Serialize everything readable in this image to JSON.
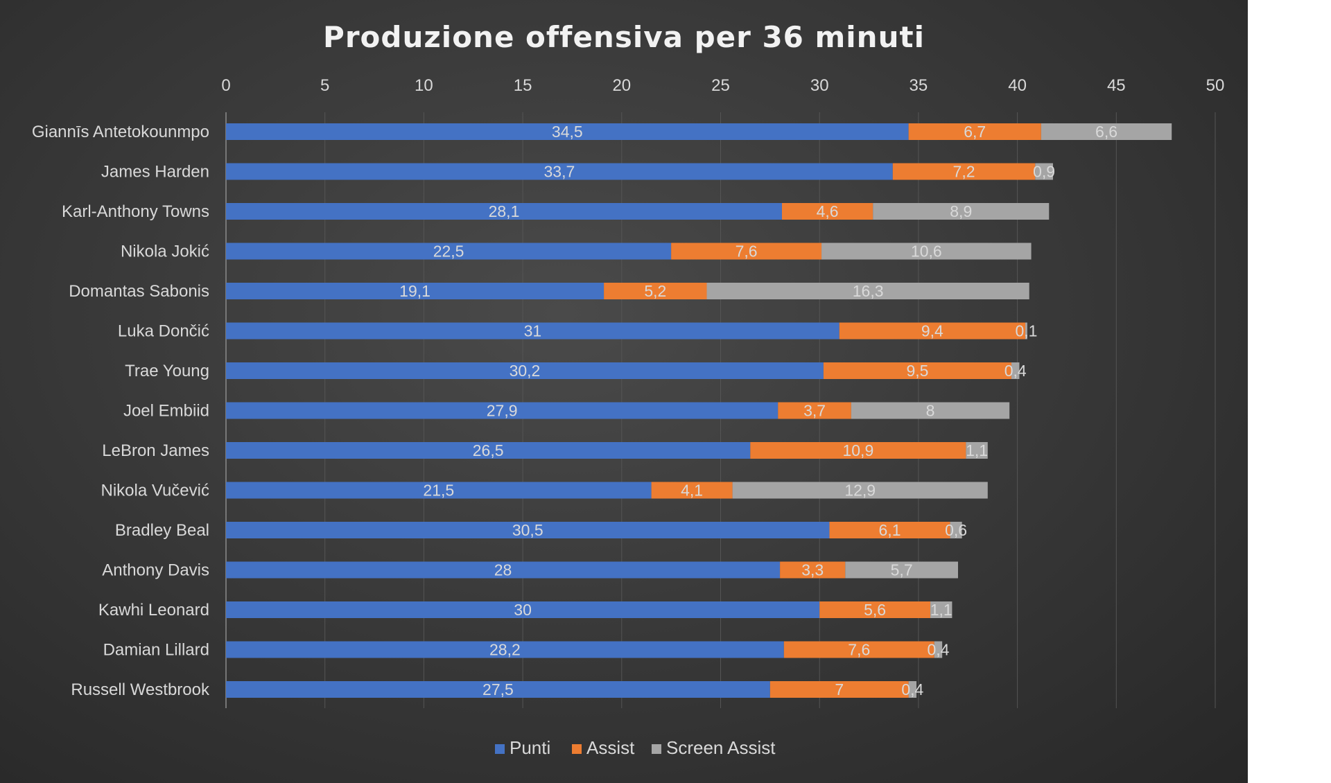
{
  "chart_data": {
    "type": "bar",
    "orientation": "horizontal",
    "stacked": true,
    "title": "Produzione  offensiva  per  36  minuti",
    "xlim": [
      0,
      50
    ],
    "xticks": [
      0,
      5,
      10,
      15,
      20,
      25,
      30,
      35,
      40,
      45,
      50
    ],
    "x_axis_position": "top",
    "grid": true,
    "legend_position": "bottom",
    "categories": [
      "Giannīs Antetokounmpo",
      "James Harden",
      "Karl-Anthony Towns",
      "Nikola Jokić",
      "Domantas Sabonis",
      "Luka Dončić",
      "Trae Young",
      "Joel Embiid",
      "LeBron James",
      "Nikola Vučević",
      "Bradley  Beal",
      "Anthony Davis",
      "Kawhi Leonard",
      "Damian Lillard",
      "Russell Westbrook"
    ],
    "series": [
      {
        "name": "Punti",
        "color": "#4472c4",
        "values": [
          34.5,
          33.7,
          28.1,
          22.5,
          19.1,
          31,
          30.2,
          27.9,
          26.5,
          21.5,
          30.5,
          28,
          30,
          28.2,
          27.5
        ],
        "labels": [
          "34,5",
          "33,7",
          "28,1",
          "22,5",
          "19,1",
          "31",
          "30,2",
          "27,9",
          "26,5",
          "21,5",
          "30,5",
          "28",
          "30",
          "28,2",
          "27,5"
        ]
      },
      {
        "name": "Assist",
        "color": "#ed7d31",
        "values": [
          6.7,
          7.2,
          4.6,
          7.6,
          5.2,
          9.4,
          9.5,
          3.7,
          10.9,
          4.1,
          6.1,
          3.3,
          5.6,
          7.6,
          7
        ],
        "labels": [
          "6,7",
          "7,2",
          "4,6",
          "7,6",
          "5,2",
          "9,4",
          "9,5",
          "3,7",
          "10,9",
          "4,1",
          "6,1",
          "3,3",
          "5,6",
          "7,6",
          "7"
        ]
      },
      {
        "name": "Screen Assist",
        "color": "#a5a5a5",
        "values": [
          6.6,
          0.9,
          8.9,
          10.6,
          16.3,
          0.1,
          0.4,
          8,
          1.1,
          12.9,
          0.6,
          5.7,
          1.1,
          0.4,
          0.4
        ],
        "labels": [
          "6,6",
          "0,9",
          "8,9",
          "10,6",
          "16,3",
          "0,1",
          "0,4",
          "8",
          "1,1",
          "12,9",
          "0,6",
          "5,7",
          "1,1",
          "0,4",
          "0,4"
        ]
      }
    ]
  }
}
